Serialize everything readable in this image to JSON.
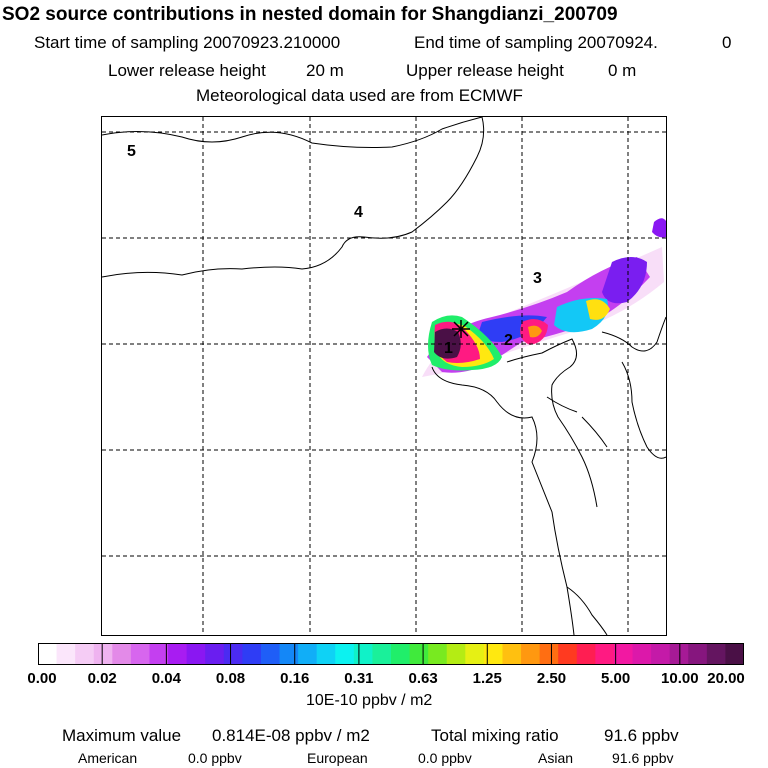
{
  "header": {
    "title": "SO2 source contributions in nested domain for Shangdianzi_200709",
    "start_label": "Start time of sampling 20070923.210000",
    "end_label": "End time of sampling 20070924.",
    "end_value": "0",
    "lower_label": "Lower release height",
    "lower_value": "20 m",
    "upper_label": "Upper release height",
    "upper_value": "0 m",
    "met_line": "Meteorological data used are from ECMWF"
  },
  "map": {
    "region_labels": [
      "1",
      "2",
      "3",
      "4",
      "5"
    ],
    "receptor_marker": "cross-marker"
  },
  "colorbar": {
    "ticks": [
      "0.00",
      "0.02",
      "0.04",
      "0.08",
      "0.16",
      "0.31",
      "0.63",
      "1.25",
      "2.50",
      "5.00",
      "10.00",
      "20.00"
    ],
    "colors": [
      "#ffffff",
      "#fbe6fb",
      "#f5ccf5",
      "#efb3f0",
      "#e38ae8",
      "#d766ee",
      "#c43ff0",
      "#a81cf2",
      "#8a17f2",
      "#6a1ef0",
      "#4b2bf2",
      "#2f3df5",
      "#1f5ef7",
      "#1487f7",
      "#11aef7",
      "#0fd2f5",
      "#0cf2f0",
      "#10f2c8",
      "#1af09a",
      "#20ee6a",
      "#40ea3c",
      "#78ea20",
      "#b4ec14",
      "#e6f014",
      "#ffe810",
      "#ffc010",
      "#ff9810",
      "#ff6e12",
      "#ff3a20",
      "#ff1e52",
      "#ff1a82",
      "#f218a2",
      "#dc18aa",
      "#c41aa8",
      "#a61a96",
      "#86167e",
      "#641560",
      "#4a1046"
    ],
    "unit": "10E-10 ppbv / m2"
  },
  "footer": {
    "max_label": "Maximum value",
    "max_value": "0.814E-08 ppbv / m2",
    "total_label": "Total mixing ratio",
    "total_value": "91.6 ppbv",
    "american_label": "American",
    "american_value": "0.0 ppbv",
    "european_label": "European",
    "european_value": "0.0 ppbv",
    "asian_label": "Asian",
    "asian_value": "91.6 ppbv"
  }
}
